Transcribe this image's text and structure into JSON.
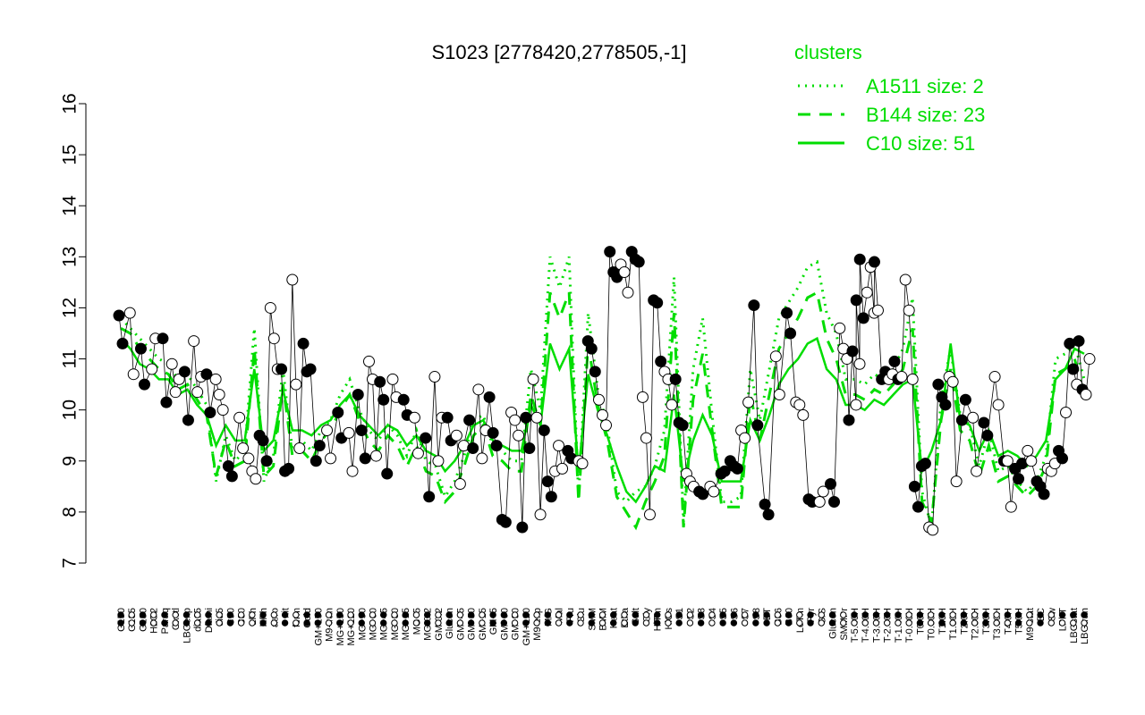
{
  "chart_data": {
    "type": "line",
    "title": "S1023 [2778420,2778505,-1]",
    "xlabel": "",
    "ylabel": "",
    "ylim": [
      7,
      16
    ],
    "yticks": [
      7,
      8,
      9,
      10,
      11,
      12,
      13,
      14,
      15,
      16
    ],
    "grid": false,
    "legend": {
      "title": "clusters",
      "placement": "top-right",
      "entries": [
        {
          "label": "A1511 size: 2",
          "style": "dotted"
        },
        {
          "label": "B144 size: 23",
          "style": "dashed"
        },
        {
          "label": "C10 size: 51",
          "style": "solid"
        }
      ]
    },
    "x_tick_labels": [
      "G150",
      "G135",
      "G180",
      "H2O2",
      "Paraq",
      "Oxctl",
      "LBGexp",
      "dia15",
      "Diami",
      "dia5",
      "C90",
      "C30",
      "LPh",
      "HPh",
      "aero",
      "nit",
      "ferm",
      "Cold",
      "GM+150",
      "M9-tran",
      "MG+150",
      "MG+120",
      "MG+90",
      "MG+60",
      "MG+45",
      "MG+30",
      "MG+15",
      "MG+5",
      "MG-0.2",
      "GM-0.2",
      "Glucon",
      "GM+45",
      "GM+30",
      "GM+15",
      "GM+5",
      "GM+60",
      "GM+90",
      "GM+120",
      "M9-exp",
      "M/G",
      "Mal",
      "Fru",
      "Glu",
      "SMM",
      "BMM",
      "Heat",
      "Etha",
      "Salt",
      "Gly",
      "HiTm",
      "HiOs",
      "S1",
      "S2",
      "S3",
      "S4",
      "S5",
      "S6",
      "S7",
      "S8",
      "BT",
      "B36",
      "B60",
      "LoTm",
      "Pyr",
      "G/S",
      "Glucon",
      "SMMPr",
      "T-5.40H",
      "T-4.40H",
      "T-3.40H",
      "T-2.40H",
      "T-1.40H",
      "T-0.40H",
      "T0.0H",
      "T0.30H",
      "T1.0H",
      "T1.30H",
      "T2.0H",
      "T2.30H",
      "T3.0H",
      "T3.30H",
      "T4.0H",
      "T5.0H",
      "M9-stat",
      "BC",
      "Sw",
      "LPhT",
      "LBGstat",
      "LBGtran",
      "M0t45",
      "M40t45",
      "Lbtran",
      "Mt0",
      "M40t90",
      "M0t90",
      "Lbstat",
      "BI",
      "S0",
      "dia0",
      "Mt0",
      "Lbexp",
      "M0t45"
    ],
    "series": [
      {
        "name": "A1511 size: 2",
        "style": "dotted",
        "values": [
          11.8,
          11.6,
          11.4,
          11.2,
          11.0,
          10.9,
          10.6,
          10.7,
          10.4,
          10.1,
          8.6,
          9.5,
          9.0,
          9.2,
          11.6,
          8.6,
          9.1,
          10.8,
          9.2,
          9.4,
          9.2,
          9.6,
          9.8,
          10.3,
          10.6,
          10.0,
          9.6,
          9.4,
          9.7,
          9.5,
          9.1,
          9.6,
          9.0,
          8.9,
          8.3,
          8.6,
          9.1,
          9.8,
          9.9,
          9.3,
          9.2,
          9.0,
          9.0,
          10.8,
          10.0,
          13.0,
          12.4,
          13.0,
          8.3,
          11.9,
          10.4,
          9.7,
          8.4,
          8.2,
          8.4,
          8.5,
          8.9,
          9.6,
          12.6,
          7.8,
          10.8,
          11.8,
          9.9,
          8.2,
          8.2,
          8.3,
          10.8,
          9.8,
          10.8,
          11.8,
          12.1,
          12.4,
          12.8,
          12.9,
          11.9,
          11.5,
          10.6,
          10.6,
          10.5,
          10.7,
          10.6,
          10.8,
          11.2,
          12.2,
          8.4,
          7.7,
          10.2,
          11.2,
          9.9,
          9.7,
          8.9,
          9.6,
          8.8,
          8.9,
          8.6,
          8.4,
          8.6,
          9.1,
          11.0,
          11.1,
          11.3,
          10.6
        ]
      },
      {
        "name": "B144 size: 23",
        "style": "dashed",
        "values": [
          11.6,
          11.5,
          11.2,
          11.0,
          10.8,
          10.7,
          10.4,
          10.5,
          10.2,
          9.9,
          8.7,
          9.4,
          8.9,
          9.0,
          11.2,
          8.7,
          8.9,
          10.5,
          9.1,
          9.2,
          9.0,
          9.4,
          9.6,
          10.0,
          10.3,
          9.8,
          9.4,
          9.2,
          9.5,
          9.3,
          8.9,
          9.3,
          8.8,
          8.7,
          8.2,
          8.4,
          8.9,
          9.5,
          9.7,
          9.1,
          9.0,
          8.8,
          8.8,
          10.3,
          9.7,
          12.3,
          11.8,
          12.3,
          8.2,
          11.3,
          10.1,
          9.4,
          8.3,
          8.0,
          7.7,
          8.2,
          8.6,
          9.1,
          11.9,
          7.7,
          10.2,
          11.1,
          9.6,
          8.1,
          8.1,
          8.1,
          10.3,
          9.4,
          10.3,
          11.2,
          11.5,
          11.8,
          12.2,
          12.3,
          11.4,
          11.0,
          10.3,
          10.3,
          10.2,
          10.4,
          10.3,
          10.5,
          10.8,
          11.6,
          8.2,
          7.8,
          9.8,
          10.8,
          9.6,
          9.4,
          8.7,
          9.3,
          8.6,
          8.7,
          8.5,
          8.3,
          8.5,
          8.9,
          10.7,
          10.8,
          11.0,
          10.3
        ]
      },
      {
        "name": "C10 size: 51",
        "style": "solid",
        "values": [
          11.4,
          11.2,
          10.9,
          10.8,
          10.6,
          10.6,
          10.3,
          10.4,
          10.1,
          9.9,
          9.3,
          9.7,
          9.4,
          9.4,
          10.8,
          9.2,
          9.4,
          10.4,
          9.6,
          9.6,
          9.5,
          9.7,
          9.8,
          10.1,
          10.3,
          9.9,
          9.7,
          9.5,
          9.7,
          9.6,
          9.3,
          9.5,
          9.2,
          9.1,
          8.8,
          9.0,
          9.3,
          9.7,
          9.8,
          9.4,
          9.3,
          9.2,
          9.2,
          10.1,
          9.7,
          11.3,
          10.8,
          11.2,
          8.8,
          10.7,
          10.0,
          9.5,
          8.9,
          8.4,
          8.2,
          8.5,
          8.9,
          8.8,
          10.3,
          8.6,
          9.4,
          9.9,
          9.5,
          8.6,
          8.6,
          8.6,
          9.8,
          9.4,
          9.9,
          10.5,
          10.8,
          11.0,
          11.3,
          11.4,
          10.8,
          10.6,
          10.1,
          10.1,
          10.0,
          10.2,
          10.1,
          10.3,
          10.5,
          10.6,
          8.8,
          9.2,
          9.8,
          11.3,
          9.8,
          9.7,
          9.2,
          9.6,
          9.1,
          9.2,
          9.1,
          8.9,
          9.1,
          9.4,
          10.6,
          10.8,
          11.2,
          11.1
        ]
      }
    ],
    "point_groups": [
      {
        "label": "G150",
        "filled": [
          11.85,
          11.3
        ],
        "open": []
      },
      {
        "label": "G135",
        "filled": [],
        "open": [
          11.9,
          10.7
        ]
      },
      {
        "label": "G180",
        "filled": [
          11.2,
          10.5
        ],
        "open": []
      },
      {
        "label": "H2O2",
        "filled": [],
        "open": [
          10.8,
          11.4
        ]
      },
      {
        "label": "Paraq",
        "filled": [
          11.4,
          10.15
        ],
        "open": []
      },
      {
        "label": "Oxctl",
        "filled": [],
        "open": [
          10.9,
          10.35,
          10.6
        ]
      },
      {
        "label": "LBGexp",
        "filled": [
          10.75,
          9.8
        ],
        "open": []
      },
      {
        "label": "dia15",
        "filled": [],
        "open": [
          11.35,
          10.35,
          10.65
        ]
      },
      {
        "label": "Diami",
        "filled": [
          10.7,
          9.95
        ],
        "open": []
      },
      {
        "label": "dia5",
        "filled": [],
        "open": [
          10.6,
          10.3,
          10.0
        ]
      },
      {
        "label": "C90",
        "filled": [
          8.9,
          8.7
        ],
        "open": []
      },
      {
        "label": "C30",
        "filled": [],
        "open": [
          9.85,
          9.25
        ]
      },
      {
        "label": "LPh",
        "filled": [],
        "open": [
          9.05,
          8.8,
          8.65
        ]
      },
      {
        "label": "HPh",
        "filled": [
          9.5,
          9.4,
          9.0
        ],
        "open": []
      },
      {
        "label": "aero",
        "filled": [],
        "open": [
          12.0,
          11.4,
          10.8
        ]
      },
      {
        "label": "nit",
        "filled": [
          10.8,
          8.8,
          8.85
        ],
        "open": []
      },
      {
        "label": "ferm",
        "filled": [],
        "open": [
          12.55,
          10.5,
          9.25
        ]
      },
      {
        "label": "Cold",
        "filled": [
          11.3,
          10.75,
          10.8
        ],
        "open": []
      },
      {
        "label": "GM+150",
        "filled": [
          9.0,
          9.3
        ],
        "open": []
      },
      {
        "label": "M9-tran",
        "filled": [],
        "open": [
          9.6,
          9.05
        ]
      },
      {
        "label": "MG+150",
        "filled": [
          9.95,
          9.45
        ],
        "open": []
      },
      {
        "label": "MG+120",
        "filled": [],
        "open": [
          9.55,
          8.8
        ]
      },
      {
        "label": "MG+90",
        "filled": [
          10.3,
          9.6,
          9.05
        ],
        "open": []
      },
      {
        "label": "MG+60",
        "filled": [],
        "open": [
          10.95,
          10.6,
          9.1
        ]
      },
      {
        "label": "MG+45",
        "filled": [
          10.55,
          10.2,
          8.75
        ],
        "open": []
      },
      {
        "label": "MG+30",
        "filled": [],
        "open": [
          10.6,
          10.25
        ]
      },
      {
        "label": "MG+15",
        "filled": [
          10.2,
          9.9
        ],
        "open": []
      },
      {
        "label": "MG+5",
        "filled": [],
        "open": [
          9.85,
          9.15
        ]
      },
      {
        "label": "MG-0.2",
        "filled": [
          9.45,
          8.3
        ],
        "open": []
      },
      {
        "label": "GM-0.2",
        "filled": [],
        "open": [
          10.65,
          9.0,
          9.85
        ]
      },
      {
        "label": "Glucon",
        "filled": [
          9.85,
          9.4
        ],
        "open": []
      },
      {
        "label": "GM+45",
        "filled": [],
        "open": [
          9.5,
          8.55,
          9.3
        ]
      },
      {
        "label": "GM+30",
        "filled": [
          9.8,
          9.25
        ],
        "open": []
      },
      {
        "label": "GM+15",
        "filled": [],
        "open": [
          10.4,
          9.05,
          9.6
        ]
      },
      {
        "label": "GM+5",
        "filled": [
          10.25,
          9.55,
          9.3
        ],
        "open": []
      },
      {
        "label": "GM+60",
        "filled": [
          7.85,
          7.8
        ],
        "open": []
      },
      {
        "label": "GM+90",
        "filled": [],
        "open": [
          9.95,
          9.8,
          9.5
        ]
      },
      {
        "label": "GM+120",
        "filled": [
          7.7,
          9.85,
          9.25
        ],
        "open": []
      },
      {
        "label": "M9-exp",
        "filled": [],
        "open": [
          10.6,
          9.85,
          7.95
        ]
      },
      {
        "label": "M/G",
        "filled": [
          9.6,
          8.6,
          8.3
        ],
        "open": []
      },
      {
        "label": "Mal",
        "filled": [],
        "open": [
          8.8,
          9.3,
          8.85
        ]
      },
      {
        "label": "Fru",
        "filled": [
          9.2,
          9.05
        ],
        "open": []
      },
      {
        "label": "Glu",
        "filled": [],
        "open": [
          9.0,
          8.95
        ]
      },
      {
        "label": "SMM",
        "filled": [
          11.35,
          11.2,
          10.75
        ],
        "open": []
      },
      {
        "label": "BMM",
        "filled": [],
        "open": [
          10.2,
          9.9,
          9.7
        ]
      },
      {
        "label": "Heat",
        "filled": [
          13.1,
          12.7,
          12.6
        ],
        "open": []
      },
      {
        "label": "Etha",
        "filled": [],
        "open": [
          12.85,
          12.7,
          12.3
        ]
      },
      {
        "label": "Salt",
        "filled": [
          13.1,
          12.95,
          12.9
        ],
        "open": []
      },
      {
        "label": "Gly",
        "filled": [],
        "open": [
          10.25,
          9.45,
          7.95
        ]
      },
      {
        "label": "HiTm",
        "filled": [
          12.15,
          12.1,
          10.95
        ],
        "open": []
      },
      {
        "label": "HiOs",
        "filled": [],
        "open": [
          10.75,
          10.6,
          10.1
        ]
      },
      {
        "label": "S1",
        "filled": [
          10.6,
          9.75,
          9.7
        ],
        "open": []
      },
      {
        "label": "S2",
        "filled": [],
        "open": [
          8.75,
          8.6,
          8.5
        ]
      },
      {
        "label": "S3",
        "filled": [
          8.4,
          8.35
        ],
        "open": []
      },
      {
        "label": "S4",
        "filled": [],
        "open": [
          8.5,
          8.4
        ]
      },
      {
        "label": "S5",
        "filled": [
          8.75,
          8.8
        ],
        "open": []
      },
      {
        "label": "S6",
        "filled": [
          9.0,
          8.9,
          8.85
        ],
        "open": []
      },
      {
        "label": "S7",
        "filled": [],
        "open": [
          9.6,
          9.45,
          10.15
        ]
      },
      {
        "label": "S8",
        "filled": [
          12.05,
          9.7
        ],
        "open": []
      },
      {
        "label": "BT",
        "filled": [
          8.15,
          7.95
        ],
        "open": []
      },
      {
        "label": "B36",
        "filled": [],
        "open": [
          11.05,
          10.3
        ]
      },
      {
        "label": "B60",
        "filled": [
          11.9,
          11.5
        ],
        "open": []
      },
      {
        "label": "LoTm",
        "filled": [],
        "open": [
          10.15,
          10.1,
          9.9
        ]
      },
      {
        "label": "Pyr",
        "filled": [
          8.25,
          8.2
        ],
        "open": []
      },
      {
        "label": "G/S",
        "filled": [],
        "open": [
          8.2,
          8.4
        ]
      },
      {
        "label": "Glucon2",
        "filled": [
          8.55,
          8.2
        ],
        "open": []
      },
      {
        "label": "SMMPr",
        "filled": [],
        "open": [
          11.6,
          11.2,
          11.0
        ]
      },
      {
        "label": "T-5.40H",
        "filled": [
          9.8,
          11.15
        ],
        "open": [
          10.1,
          10.9
        ]
      },
      {
        "label": "T-0.40H",
        "filled": [
          12.15,
          12.95,
          11.8
        ],
        "open": [
          12.3,
          12.8,
          11.9
        ]
      },
      {
        "label": "T0.0H",
        "filled": [
          12.9
        ],
        "open": [
          11.95
        ]
      },
      {
        "label": "T1.0H",
        "filled": [
          10.6,
          10.75
        ],
        "open": [
          10.6,
          10.7
        ]
      },
      {
        "label": "T3.0H",
        "filled": [
          10.95,
          10.6
        ],
        "open": [
          10.65
        ]
      },
      {
        "label": "M9-stat",
        "filled": [],
        "open": [
          12.55,
          11.95,
          10.6
        ]
      },
      {
        "label": "BC",
        "filled": [
          8.5,
          8.1,
          8.9,
          8.95
        ],
        "open": []
      },
      {
        "label": "Sw",
        "filled": [],
        "open": [
          7.7,
          7.65
        ]
      },
      {
        "label": "LPhT",
        "filled": [
          10.5,
          10.25,
          10.1
        ],
        "open": []
      },
      {
        "label": "LBGstat",
        "filled": [],
        "open": [
          10.65,
          10.55,
          8.6
        ]
      },
      {
        "label": "LBGtran",
        "filled": [
          9.8,
          10.2
        ],
        "open": []
      },
      {
        "label": "M0t45",
        "filled": [],
        "open": [
          9.85,
          8.8
        ]
      },
      {
        "label": "M40t45",
        "filled": [
          9.75,
          9.5
        ],
        "open": []
      },
      {
        "label": "Lbtran",
        "filled": [],
        "open": [
          10.65,
          10.1
        ]
      },
      {
        "label": "Mt0",
        "filled": [
          9.0
        ],
        "open": [
          9.0,
          8.1
        ]
      },
      {
        "label": "M40t90",
        "filled": [
          8.85,
          8.65,
          8.95
        ],
        "open": []
      },
      {
        "label": "M0t90",
        "filled": [],
        "open": [
          9.2,
          9.0
        ]
      },
      {
        "label": "Lbstat",
        "filled": [
          8.6,
          8.5,
          8.35
        ],
        "open": []
      },
      {
        "label": "BI",
        "filled": [],
        "open": [
          8.85,
          8.8,
          8.95
        ]
      },
      {
        "label": "S0",
        "filled": [
          9.2,
          9.05
        ],
        "open": [
          9.95
        ]
      },
      {
        "label": "dia0",
        "filled": [
          11.3,
          10.8
        ],
        "open": [
          10.5
        ]
      },
      {
        "label": "Lbexp",
        "filled": [
          11.35,
          10.4
        ],
        "open": [
          10.3,
          11.0
        ]
      }
    ]
  },
  "colors": {
    "series": "#00dd00",
    "axis": "#000000",
    "point_fill": "#000000",
    "point_open": "#ffffff"
  }
}
